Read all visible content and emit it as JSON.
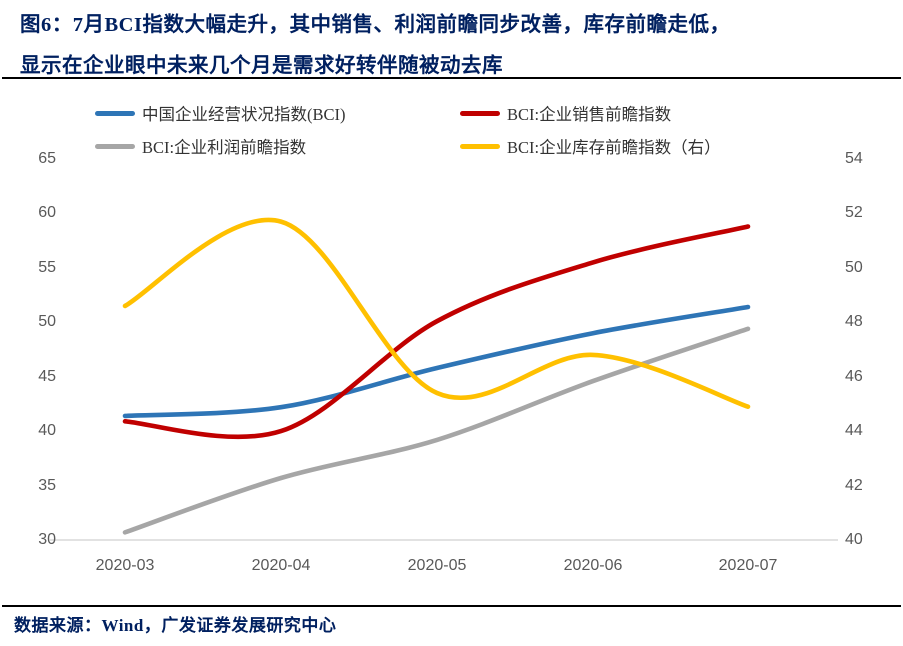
{
  "title": {
    "line1": "图6：7月BCI指数大幅走升，其中销售、利润前瞻同步改善，库存前瞻走低，",
    "line2": "显示在企业眼中未来几个月是需求好转伴随被动去库"
  },
  "source_note": "数据来源：Wind，广发证券发展研究中心",
  "colors": {
    "title_text": "#002060",
    "axis_text": "#595959",
    "axis_line": "#D9D9D9",
    "rule": "#000000"
  },
  "chart_data": {
    "type": "line",
    "smoothed": true,
    "legend_position": "top",
    "grid": false,
    "categories": [
      "2020-03",
      "2020-04",
      "2020-05",
      "2020-06",
      "2020-07"
    ],
    "series": [
      {
        "id": "bci",
        "name": "中国企业经营状况指数(BCI)",
        "axis": "left",
        "color": "#2E75B6",
        "values": [
          41.4,
          42.2,
          45.8,
          49.0,
          51.4
        ]
      },
      {
        "id": "sales",
        "name": "BCI:企业销售前瞻指数",
        "axis": "left",
        "color": "#C00000",
        "values": [
          40.9,
          40.0,
          50.1,
          55.5,
          58.8
        ]
      },
      {
        "id": "profit",
        "name": "BCI:企业利润前瞻指数",
        "axis": "left",
        "color": "#A6A6A6",
        "values": [
          30.7,
          35.7,
          39.2,
          44.6,
          49.4
        ]
      },
      {
        "id": "inventory",
        "name": "BCI:企业库存前瞻指数（右）",
        "axis": "right",
        "color": "#FFC000",
        "values": [
          48.6,
          51.7,
          45.4,
          46.8,
          44.9
        ]
      }
    ],
    "left_axis": {
      "min": 30,
      "max": 65,
      "ticks": [
        65,
        60,
        55,
        50,
        45,
        40,
        35,
        30
      ]
    },
    "right_axis": {
      "min": 40,
      "max": 54,
      "ticks": [
        54,
        52,
        50,
        48,
        46,
        44,
        42,
        40
      ]
    },
    "xlabel": "",
    "ylabel": ""
  }
}
